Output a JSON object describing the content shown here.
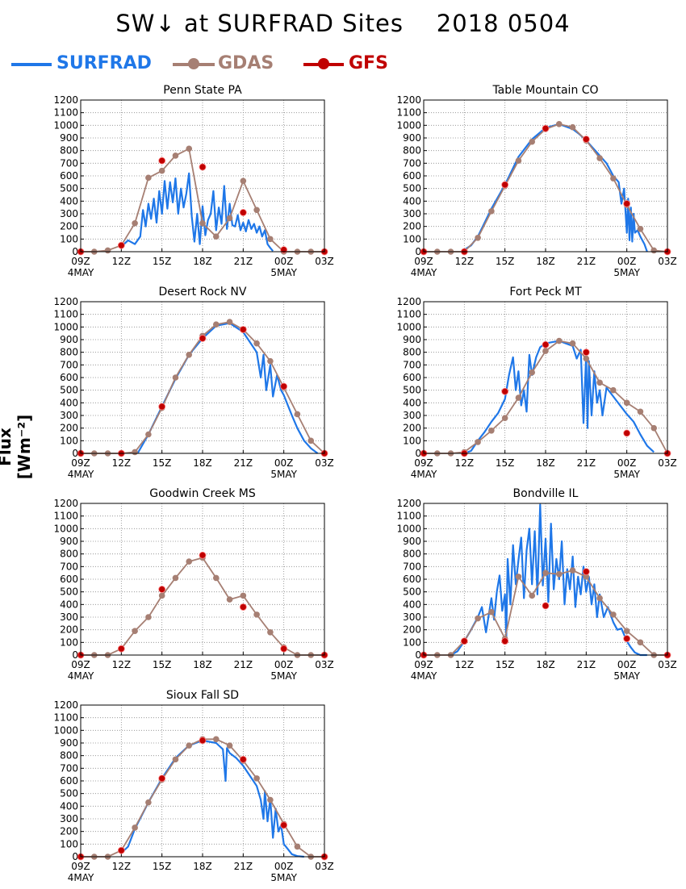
{
  "title": "SW↓ at SURFRAD Sites    2018 0504",
  "ylabel": "Flux [Wm⁻²]",
  "legend": [
    {
      "name": "SURFRAD",
      "color": "#1f77e8",
      "marker": "none"
    },
    {
      "name": "GDAS",
      "color": "#a67f73",
      "marker": "circle"
    },
    {
      "name": "GFS",
      "color": "#c00000",
      "marker": "dot"
    }
  ],
  "axes": {
    "yticks": [
      0,
      100,
      200,
      300,
      400,
      500,
      600,
      700,
      800,
      900,
      1000,
      1100,
      1200
    ],
    "xticks": [
      "09Z",
      "12Z",
      "15Z",
      "18Z",
      "21Z",
      "00Z",
      "03Z"
    ],
    "xsublabels": [
      "4MAY",
      "",
      "",
      "",
      "",
      "5MAY",
      ""
    ],
    "xrange_hours": [
      9,
      27
    ],
    "ylim": [
      0,
      1200
    ]
  },
  "chart_data": [
    {
      "type": "line",
      "title": "Penn State PA",
      "series": [
        {
          "name": "SURFRAD",
          "x": [
            12,
            12.2,
            12.5,
            13,
            13.4,
            13.6,
            13.8,
            14,
            14.2,
            14.4,
            14.6,
            14.8,
            15,
            15.2,
            15.4,
            15.6,
            15.8,
            16,
            16.2,
            16.4,
            16.6,
            16.8,
            17,
            17.2,
            17.4,
            17.6,
            17.8,
            18,
            18.2,
            18.4,
            18.6,
            18.8,
            19,
            19.2,
            19.4,
            19.6,
            19.8,
            20,
            20.2,
            20.4,
            20.6,
            20.8,
            21,
            21.2,
            21.4,
            21.6,
            21.8,
            22,
            22.2,
            22.4,
            22.6,
            22.8,
            23,
            23.2
          ],
          "y": [
            30,
            60,
            90,
            60,
            120,
            330,
            200,
            380,
            260,
            420,
            230,
            480,
            300,
            560,
            340,
            550,
            390,
            580,
            300,
            500,
            350,
            460,
            620,
            280,
            80,
            300,
            60,
            360,
            130,
            250,
            300,
            480,
            170,
            350,
            220,
            520,
            180,
            380,
            210,
            200,
            290,
            170,
            230,
            160,
            250,
            180,
            220,
            150,
            200,
            120,
            170,
            60,
            30,
            5
          ]
        },
        {
          "name": "GDAS",
          "x": [
            9,
            10,
            11,
            12,
            13,
            14,
            15,
            16,
            17,
            18,
            19,
            20,
            21,
            22,
            23,
            24,
            25,
            26,
            27
          ],
          "y": [
            0,
            0,
            10,
            50,
            225,
            585,
            640,
            760,
            815,
            225,
            120,
            265,
            560,
            330,
            100,
            0,
            0,
            0,
            0
          ]
        },
        {
          "name": "GFS",
          "x": [
            9,
            12,
            15,
            18,
            21,
            24,
            27
          ],
          "y": [
            0,
            50,
            720,
            670,
            310,
            15,
            0
          ]
        }
      ]
    },
    {
      "type": "line",
      "title": "Table Mountain CO",
      "series": [
        {
          "name": "SURFRAD",
          "x": [
            11.8,
            12.5,
            13,
            14,
            15,
            16,
            17,
            18,
            19,
            20,
            20.5,
            21,
            21.5,
            22,
            22.5,
            23,
            23.4,
            23.6,
            23.8,
            24,
            24.1,
            24.2,
            24.3,
            24.4,
            24.5,
            24.6,
            24.8,
            25,
            25.3,
            25.5
          ],
          "y": [
            0,
            50,
            120,
            340,
            530,
            750,
            890,
            980,
            1010,
            970,
            930,
            880,
            820,
            760,
            700,
            600,
            550,
            380,
            500,
            150,
            420,
            90,
            350,
            80,
            300,
            150,
            170,
            120,
            60,
            0
          ]
        },
        {
          "name": "GDAS",
          "x": [
            9,
            10,
            11,
            12,
            13,
            14,
            15,
            16,
            17,
            18,
            19,
            20,
            21,
            22,
            23,
            24,
            25,
            26,
            27
          ],
          "y": [
            0,
            0,
            0,
            0,
            110,
            320,
            520,
            720,
            870,
            970,
            1010,
            985,
            880,
            740,
            580,
            370,
            180,
            10,
            0
          ]
        },
        {
          "name": "GFS",
          "x": [
            9,
            12,
            15,
            18,
            21,
            24,
            27
          ],
          "y": [
            0,
            0,
            530,
            975,
            890,
            380,
            0
          ]
        }
      ]
    },
    {
      "type": "line",
      "title": "Desert Rock NV",
      "series": [
        {
          "name": "SURFRAD",
          "x": [
            13.2,
            14,
            15,
            16,
            17,
            18,
            19,
            20,
            21,
            21.5,
            22,
            22.3,
            22.5,
            22.7,
            23,
            23.2,
            23.5,
            23.8,
            24,
            24.3,
            24.6,
            25,
            25.5,
            26,
            26.5
          ],
          "y": [
            0,
            150,
            370,
            590,
            780,
            910,
            1010,
            1030,
            960,
            880,
            800,
            600,
            780,
            500,
            700,
            450,
            620,
            500,
            460,
            380,
            300,
            200,
            100,
            40,
            0
          ]
        },
        {
          "name": "GDAS",
          "x": [
            9,
            10,
            11,
            12,
            13,
            14,
            15,
            16,
            17,
            18,
            19,
            20,
            21,
            22,
            23,
            24,
            25,
            26,
            27
          ],
          "y": [
            0,
            0,
            0,
            0,
            10,
            150,
            360,
            600,
            780,
            930,
            1020,
            1040,
            980,
            870,
            730,
            520,
            310,
            100,
            0
          ]
        },
        {
          "name": "GFS",
          "x": [
            9,
            12,
            15,
            18,
            21,
            24,
            27
          ],
          "y": [
            0,
            0,
            370,
            910,
            980,
            530,
            0
          ]
        }
      ]
    },
    {
      "type": "line",
      "title": "Fort Peck MT",
      "series": [
        {
          "name": "SURFRAD",
          "x": [
            12,
            12.5,
            13,
            13.5,
            14,
            14.5,
            15,
            15.3,
            15.6,
            15.8,
            16,
            16.2,
            16.4,
            16.6,
            16.8,
            17,
            17.3,
            17.6,
            18,
            18.5,
            19,
            19.5,
            20,
            20.3,
            20.6,
            20.8,
            21,
            21.1,
            21.2,
            21.4,
            21.6,
            21.8,
            22,
            22.2,
            22.5,
            23,
            23.5,
            24,
            24.5,
            25,
            25.5,
            26
          ],
          "y": [
            0,
            20,
            100,
            170,
            250,
            320,
            430,
            620,
            760,
            500,
            650,
            380,
            500,
            330,
            780,
            620,
            760,
            840,
            870,
            880,
            890,
            870,
            850,
            750,
            820,
            240,
            780,
            200,
            730,
            300,
            650,
            400,
            500,
            300,
            520,
            450,
            380,
            310,
            250,
            150,
            60,
            10
          ]
        },
        {
          "name": "GDAS",
          "x": [
            9,
            10,
            11,
            12,
            13,
            14,
            15,
            16,
            17,
            18,
            19,
            20,
            21,
            22,
            23,
            24,
            25,
            26,
            27
          ],
          "y": [
            0,
            0,
            0,
            10,
            90,
            180,
            280,
            440,
            640,
            810,
            890,
            870,
            750,
            560,
            500,
            400,
            330,
            200,
            0
          ]
        },
        {
          "name": "GFS",
          "x": [
            9,
            12,
            15,
            18,
            21,
            24,
            27
          ],
          "y": [
            0,
            0,
            490,
            860,
            800,
            160,
            0
          ]
        }
      ]
    },
    {
      "type": "line",
      "title": "Goodwin Creek MS",
      "series": [
        {
          "name": "GDAS",
          "x": [
            9,
            10,
            11,
            12,
            13,
            14,
            15,
            16,
            17,
            18,
            19,
            20,
            21,
            22,
            23,
            24,
            25,
            26,
            27
          ],
          "y": [
            0,
            0,
            0,
            50,
            190,
            300,
            470,
            610,
            740,
            770,
            610,
            440,
            470,
            320,
            180,
            60,
            0,
            0,
            0
          ]
        },
        {
          "name": "GFS",
          "x": [
            9,
            12,
            15,
            18,
            21,
            24,
            27
          ],
          "y": [
            0,
            50,
            520,
            790,
            380,
            50,
            0
          ]
        }
      ]
    },
    {
      "type": "line",
      "title": "Bondville IL",
      "series": [
        {
          "name": "SURFRAD",
          "x": [
            11,
            11.5,
            12,
            12.5,
            13,
            13.3,
            13.6,
            14,
            14.2,
            14.4,
            14.6,
            14.8,
            15,
            15.1,
            15.2,
            15.4,
            15.6,
            15.8,
            16,
            16.2,
            16.4,
            16.6,
            16.8,
            17,
            17.2,
            17.4,
            17.6,
            17.8,
            18,
            18.2,
            18.4,
            18.6,
            18.8,
            19,
            19.2,
            19.4,
            19.6,
            19.8,
            20,
            20.2,
            20.4,
            20.6,
            20.8,
            21,
            21.2,
            21.4,
            21.6,
            21.8,
            22,
            22.3,
            22.6,
            23,
            23.3,
            23.6,
            24,
            24.3,
            24.6,
            25,
            25.5
          ],
          "y": [
            0,
            30,
            110,
            200,
            300,
            380,
            180,
            450,
            280,
            500,
            630,
            350,
            480,
            120,
            760,
            400,
            870,
            560,
            750,
            930,
            450,
            830,
            1000,
            560,
            980,
            480,
            1190,
            550,
            920,
            420,
            1040,
            520,
            760,
            600,
            900,
            400,
            680,
            520,
            780,
            380,
            620,
            480,
            700,
            500,
            620,
            400,
            560,
            300,
            480,
            300,
            380,
            260,
            200,
            210,
            110,
            60,
            20,
            0,
            0
          ]
        },
        {
          "name": "GDAS",
          "x": [
            9,
            10,
            11,
            12,
            13,
            14,
            15,
            16,
            17,
            18,
            19,
            20,
            21,
            22,
            23,
            24,
            25,
            26,
            27
          ],
          "y": [
            0,
            0,
            0,
            110,
            290,
            340,
            130,
            620,
            470,
            650,
            640,
            670,
            620,
            450,
            320,
            190,
            100,
            0,
            0
          ]
        },
        {
          "name": "GFS",
          "x": [
            9,
            12,
            15,
            18,
            21,
            24,
            27
          ],
          "y": [
            0,
            110,
            110,
            390,
            660,
            130,
            0
          ]
        }
      ]
    },
    {
      "type": "line",
      "title": "Sioux Fall SD",
      "series": [
        {
          "name": "SURFRAD",
          "x": [
            12,
            12.5,
            13,
            14,
            15,
            16,
            17,
            18,
            19,
            19.5,
            19.7,
            19.8,
            20,
            20.5,
            21,
            21.5,
            22,
            22.3,
            22.5,
            22.6,
            22.8,
            23,
            23.2,
            23.4,
            23.6,
            23.8,
            24,
            24.3,
            24.6,
            25,
            25.5
          ],
          "y": [
            30,
            80,
            220,
            430,
            620,
            780,
            880,
            920,
            900,
            850,
            600,
            860,
            820,
            780,
            720,
            640,
            560,
            450,
            300,
            520,
            280,
            460,
            150,
            380,
            200,
            250,
            100,
            60,
            20,
            5,
            0
          ]
        },
        {
          "name": "GDAS",
          "x": [
            9,
            10,
            11,
            12,
            13,
            14,
            15,
            16,
            17,
            18,
            19,
            20,
            21,
            22,
            23,
            24,
            25,
            26,
            27
          ],
          "y": [
            0,
            0,
            0,
            50,
            230,
            430,
            610,
            770,
            880,
            930,
            930,
            880,
            760,
            620,
            450,
            260,
            80,
            0,
            0
          ]
        },
        {
          "name": "GFS",
          "x": [
            9,
            12,
            15,
            18,
            21,
            24,
            27
          ],
          "y": [
            0,
            50,
            620,
            920,
            770,
            250,
            0
          ]
        }
      ]
    }
  ]
}
